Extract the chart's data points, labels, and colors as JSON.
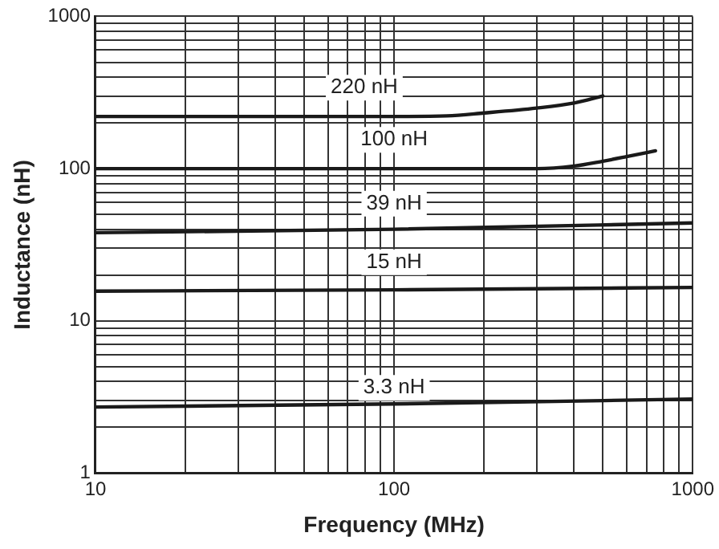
{
  "chart_data": {
    "type": "line",
    "xlabel": "Frequency (MHz)",
    "ylabel": "Inductance (nH)",
    "log": "xy",
    "grid": true,
    "legend": false,
    "marker": "none",
    "line_style": "solid",
    "xlim": [
      10,
      1000
    ],
    "ylim": [
      1,
      1000
    ],
    "xticks": [
      10,
      {
        "value": 20,
        "label": null
      },
      {
        "value": 30,
        "label": null
      },
      {
        "value": 40,
        "label": null
      },
      {
        "value": 50,
        "label": null
      },
      {
        "value": 60,
        "label": null
      },
      {
        "value": 70,
        "label": null
      },
      {
        "value": 80,
        "label": null
      },
      {
        "value": 90,
        "label": null
      },
      100,
      {
        "value": 200,
        "label": null
      },
      {
        "value": 300,
        "label": null
      },
      {
        "value": 400,
        "label": null
      },
      {
        "value": 500,
        "label": null
      },
      {
        "value": 600,
        "label": null
      },
      {
        "value": 700,
        "label": null
      },
      {
        "value": 800,
        "label": null
      },
      {
        "value": 900,
        "label": null
      },
      1000
    ],
    "yticks": [
      1,
      {
        "value": 2,
        "label": null
      },
      {
        "value": 3,
        "label": null
      },
      {
        "value": 4,
        "label": null
      },
      {
        "value": 5,
        "label": null
      },
      {
        "value": 6,
        "label": null
      },
      {
        "value": 7,
        "label": null
      },
      {
        "value": 8,
        "label": null
      },
      {
        "value": 9,
        "label": null
      },
      10,
      {
        "value": 20,
        "label": null
      },
      {
        "value": 30,
        "label": null
      },
      {
        "value": 40,
        "label": null
      },
      {
        "value": 50,
        "label": null
      },
      {
        "value": 60,
        "label": null
      },
      {
        "value": 70,
        "label": null
      },
      {
        "value": 80,
        "label": null
      },
      {
        "value": 90,
        "label": null
      },
      100,
      {
        "value": 200,
        "label": null
      },
      {
        "value": 300,
        "label": null
      },
      {
        "value": 400,
        "label": null
      },
      {
        "value": 500,
        "label": null
      },
      {
        "value": 600,
        "label": null
      },
      {
        "value": 700,
        "label": null
      },
      {
        "value": 800,
        "label": null
      },
      {
        "value": 900,
        "label": null
      },
      1000
    ],
    "series": [
      {
        "color": "#1a1a1a",
        "x": [
          10,
          50,
          100,
          150,
          200,
          300,
          400,
          500
        ],
        "values": [
          220,
          220,
          220,
          222,
          232,
          250,
          270,
          300
        ]
      },
      {
        "color": "#1a1a1a",
        "x": [
          10,
          100,
          300,
          400,
          500,
          600,
          750
        ],
        "values": [
          100,
          100,
          100,
          104,
          112,
          120,
          131
        ]
      },
      {
        "color": "#1a1a1a",
        "x": [
          10,
          100,
          1000
        ],
        "values": [
          38,
          40,
          44
        ]
      },
      {
        "color": "#1a1a1a",
        "x": [
          10,
          100,
          1000
        ],
        "values": [
          15.7,
          16,
          16.6
        ]
      },
      {
        "color": "#1a1a1a",
        "x": [
          10,
          100,
          1000
        ],
        "values": [
          2.72,
          2.85,
          3.07
        ]
      }
    ],
    "annotations": [
      "220 nH",
      "100 nH",
      "39 nH",
      "15 nH",
      "3.3 nH"
    ]
  }
}
